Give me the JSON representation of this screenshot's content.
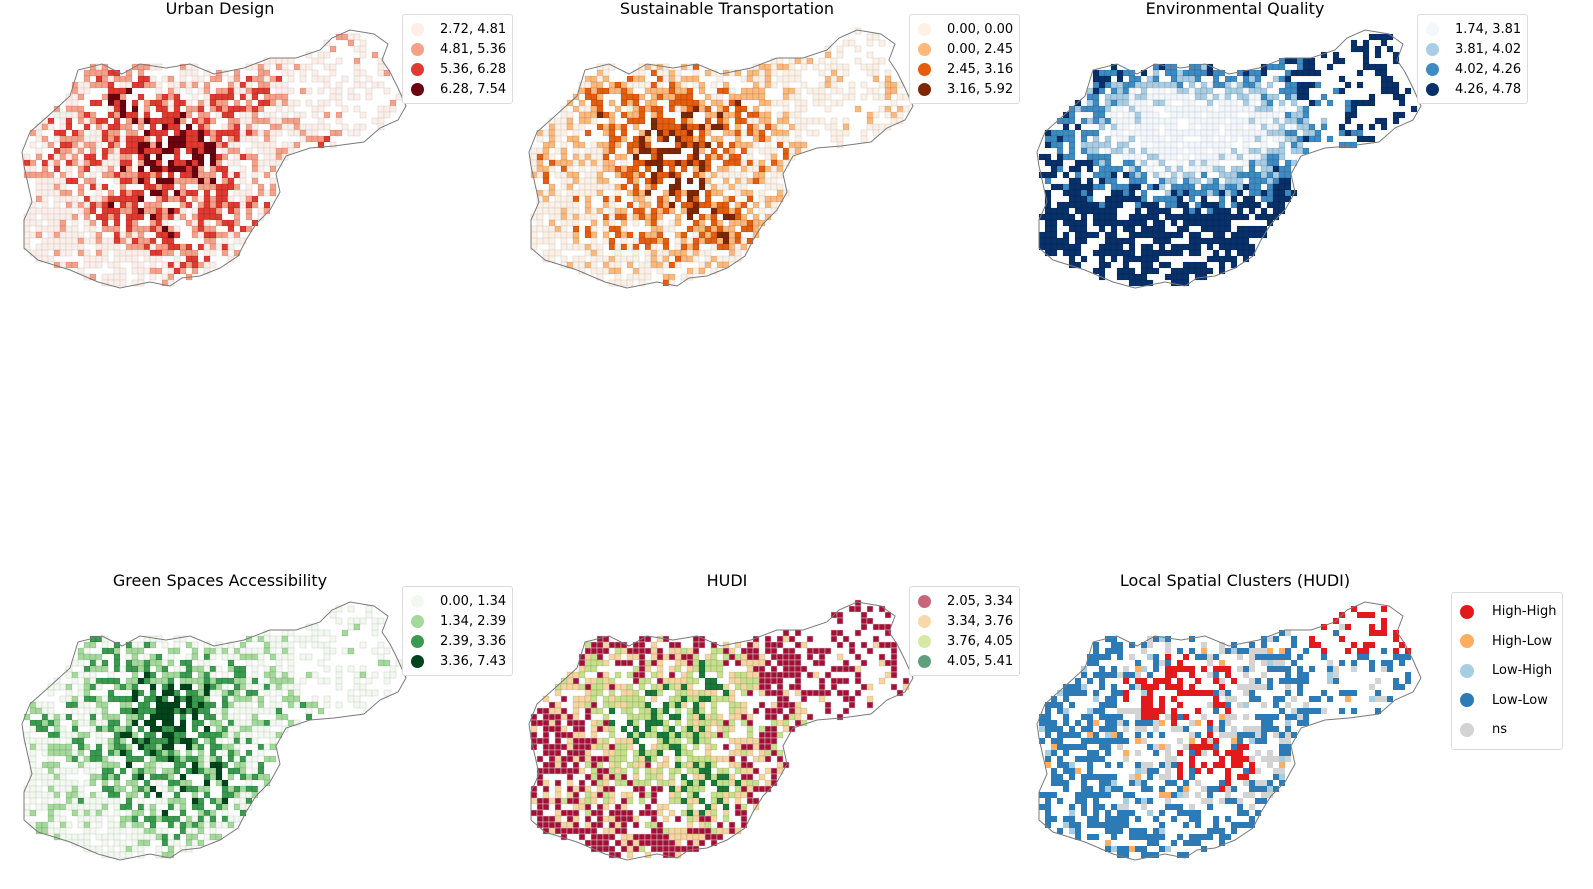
{
  "panels": [
    {
      "title": "Urban Design",
      "palette": [
        "#fdeee8",
        "#f5a189",
        "#de3a30",
        "#6b0311"
      ],
      "legend": [
        {
          "label": "2.72, 4.81",
          "color": "#fdeee8"
        },
        {
          "label": "4.81, 5.36",
          "color": "#f5a189"
        },
        {
          "label": "5.36, 6.28",
          "color": "#de3a30"
        },
        {
          "label": "6.28, 7.54",
          "color": "#6b0311"
        }
      ]
    },
    {
      "title": "Sustainable Transportation",
      "palette": [
        "#fef0e3",
        "#fdb87a",
        "#e55d0f",
        "#7f2704"
      ],
      "legend": [
        {
          "label": "0.00, 0.00",
          "color": "#fef0e3"
        },
        {
          "label": "0.00, 2.45",
          "color": "#fdb87a"
        },
        {
          "label": "2.45, 3.16",
          "color": "#e55d0f"
        },
        {
          "label": "3.16, 5.92",
          "color": "#7f2704"
        }
      ]
    },
    {
      "title": "Environmental Quality",
      "palette": [
        "#f2f7fd",
        "#a8cde4",
        "#3d8bc3",
        "#08306b"
      ],
      "legend": [
        {
          "label": "1.74, 3.81",
          "color": "#f2f7fd"
        },
        {
          "label": "3.81, 4.02",
          "color": "#a8cde4"
        },
        {
          "label": "4.02, 4.26",
          "color": "#3d8bc3"
        },
        {
          "label": "4.26, 4.78",
          "color": "#08306b"
        }
      ]
    },
    {
      "title": "Green Spaces Accessibility",
      "palette": [
        "#f2faf0",
        "#a4d99c",
        "#3a9a4f",
        "#00441b"
      ],
      "legend": [
        {
          "label": "0.00, 1.34",
          "color": "#f2faf0"
        },
        {
          "label": "1.34, 2.39",
          "color": "#a4d99c"
        },
        {
          "label": "2.39, 3.36",
          "color": "#3a9a4f"
        },
        {
          "label": "3.36, 7.43",
          "color": "#00441b"
        }
      ]
    },
    {
      "title": "HUDI",
      "palette": [
        "#a50f36",
        "#f5d6a0",
        "#c6e08c",
        "#1a7a3a"
      ],
      "legend": [
        {
          "label": "2.05, 3.34",
          "color": "#c9667c"
        },
        {
          "label": "3.34, 3.76",
          "color": "#f8d9ab"
        },
        {
          "label": "3.76, 4.05",
          "color": "#d5e8a6"
        },
        {
          "label": "4.05, 5.41",
          "color": "#5f9f7e"
        }
      ]
    },
    {
      "title": "Local Spatial Clusters (HUDI)",
      "palette": [
        "#e31a1c",
        "#fdae61",
        "#a6cee3",
        "#2c7bb6",
        "#d3d3d3"
      ],
      "legend": [
        {
          "label": "High-High",
          "color": "#e31a1c"
        },
        {
          "label": "High-Low",
          "color": "#fdae61"
        },
        {
          "label": "Low-High",
          "color": "#a6cee3"
        },
        {
          "label": "Low-Low",
          "color": "#2c7bb6"
        },
        {
          "label": "ns",
          "color": "#d3d3d3"
        }
      ]
    }
  ]
}
